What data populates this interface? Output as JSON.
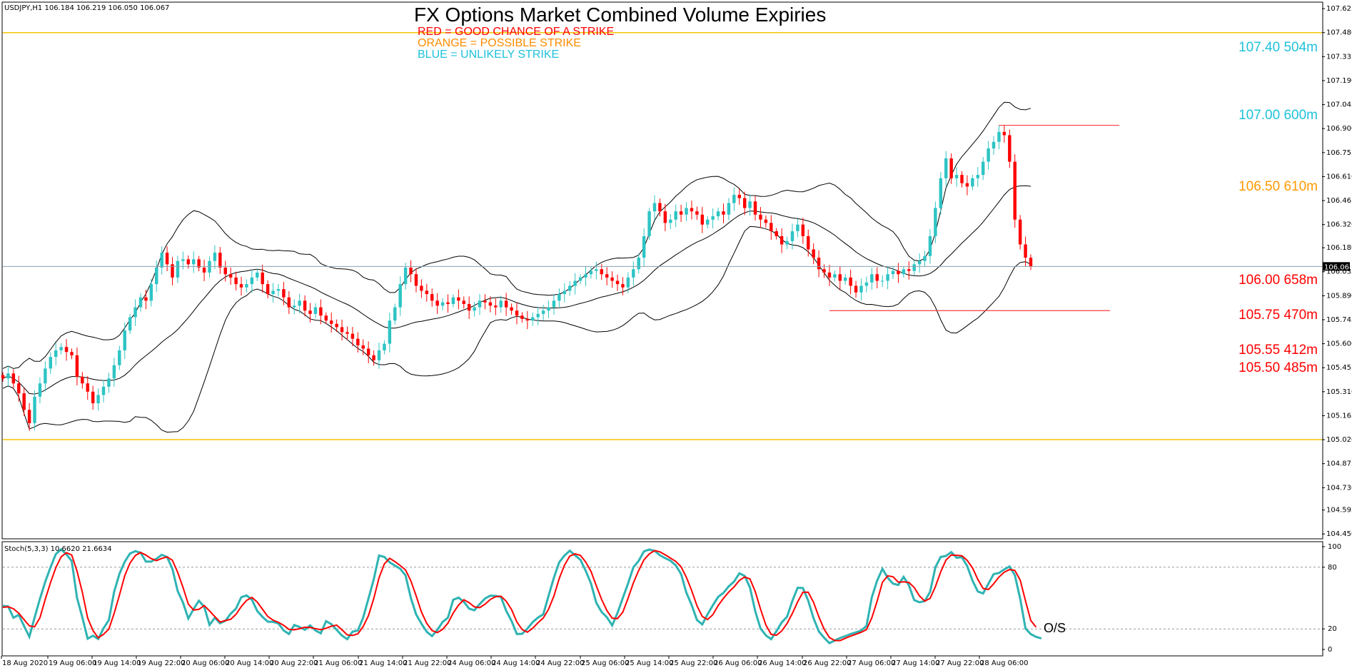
{
  "chart_data": {
    "type": "candlestick",
    "symbol_info": "USDJPY,H1  106.184 106.219 106.050 106.067",
    "title": "FX Options Market Combined Volume Expiries",
    "legend": [
      {
        "text": "RED = GOOD CHANCE OF A STRIKE",
        "color": "#ff0000"
      },
      {
        "text": "ORANGE = POSSIBLE STRIKE",
        "color": "#ff8c00"
      },
      {
        "text": "BLUE = UNLIKELY STRIKE",
        "color": "#1fc1d9"
      }
    ],
    "ylim": [
      104.425,
      107.66
    ],
    "y_ticks": [
      "107.625",
      "107.480",
      "107.335",
      "107.190",
      "107.045",
      "106.900",
      "106.755",
      "106.610",
      "106.465",
      "106.320",
      "106.180",
      "106.035",
      "105.890",
      "105.745",
      "105.600",
      "105.455",
      "105.310",
      "105.165",
      "105.020",
      "104.875",
      "104.730",
      "104.595",
      "104.450"
    ],
    "current_price": "106.067",
    "current_price_value": 106.067,
    "x_ticks": [
      "18 Aug 2020",
      "19 Aug 06:00",
      "19 Aug 14:00",
      "19 Aug 22:00",
      "20 Aug 06:00",
      "20 Aug 14:00",
      "20 Aug 22:00",
      "21 Aug 06:00",
      "21 Aug 14:00",
      "21 Aug 22:00",
      "24 Aug 06:00",
      "24 Aug 14:00",
      "24 Aug 22:00",
      "25 Aug 06:00",
      "25 Aug 14:00",
      "25 Aug 22:00",
      "26 Aug 06:00",
      "26 Aug 14:00",
      "26 Aug 22:00",
      "27 Aug 06:00",
      "27 Aug 14:00",
      "27 Aug 22:00",
      "28 Aug 06:00"
    ],
    "strikes": [
      {
        "label": "107.40 504m",
        "price": 107.4,
        "color": "#1fc1d9"
      },
      {
        "label": "107.00 600m",
        "price": 107.0,
        "color": "#1fc1d9"
      },
      {
        "label": "106.50 610m",
        "price": 106.5,
        "color": "#ff9900"
      },
      {
        "label": "106.00 658m",
        "price": 106.0,
        "color": "#ff0000"
      },
      {
        "label": "105.75 470m",
        "price": 105.75,
        "color": "#ff0000"
      },
      {
        "label": "105.55 412m",
        "price": 105.55,
        "color": "#ff0000"
      },
      {
        "label": "105.50 485m",
        "price": 105.5,
        "color": "#ff0000"
      }
    ],
    "range_lines": [
      107.48,
      105.02
    ],
    "resistance_line": {
      "price": 106.92,
      "from_bar": 188,
      "to_bar": 208
    },
    "support_line": {
      "price": 105.8,
      "from_bar": 156,
      "to_bar": 208
    },
    "closes": [
      105.39,
      105.42,
      105.36,
      105.3,
      105.2,
      105.12,
      105.28,
      105.36,
      105.45,
      105.52,
      105.56,
      105.58,
      105.55,
      105.53,
      105.4,
      105.36,
      105.31,
      105.24,
      105.29,
      105.34,
      105.39,
      105.47,
      105.56,
      105.68,
      105.76,
      105.82,
      105.88,
      105.86,
      105.96,
      106.06,
      106.15,
      106.08,
      106.0,
      106.1,
      106.11,
      106.08,
      106.11,
      106.06,
      106.03,
      106.1,
      106.15,
      106.06,
      106.02,
      106.0,
      105.96,
      105.94,
      105.96,
      106.0,
      106.03,
      105.96,
      105.9,
      105.92,
      105.93,
      105.88,
      105.82,
      105.83,
      105.86,
      105.8,
      105.78,
      105.82,
      105.77,
      105.74,
      105.72,
      105.7,
      105.67,
      105.66,
      105.63,
      105.59,
      105.57,
      105.53,
      105.5,
      105.56,
      105.6,
      105.74,
      105.82,
      105.96,
      106.06,
      106.02,
      105.95,
      105.92,
      105.9,
      105.86,
      105.83,
      105.85,
      105.84,
      105.88,
      105.86,
      105.84,
      105.8,
      105.82,
      105.86,
      105.85,
      105.83,
      105.82,
      105.86,
      105.82,
      105.8,
      105.77,
      105.75,
      105.74,
      105.76,
      105.78,
      105.8,
      105.82,
      105.86,
      105.9,
      105.92,
      105.95,
      105.98,
      106.0,
      106.02,
      106.04,
      106.05,
      106.02,
      106.0,
      105.98,
      105.96,
      105.94,
      106.0,
      106.05,
      106.12,
      106.25,
      106.4,
      106.45,
      106.4,
      106.33,
      106.35,
      106.4,
      106.38,
      106.42,
      106.4,
      106.38,
      106.32,
      106.35,
      106.37,
      106.4,
      106.38,
      106.45,
      106.5,
      106.48,
      106.42,
      106.46,
      106.38,
      106.35,
      106.33,
      106.28,
      106.25,
      106.2,
      106.22,
      106.28,
      106.32,
      106.25,
      106.17,
      106.12,
      106.05,
      106.03,
      106.0,
      106.02,
      105.98,
      106.0,
      105.95,
      105.91,
      105.95,
      105.97,
      106.02,
      105.98,
      105.98,
      106.02,
      106.04,
      106.02,
      106.05,
      106.04,
      106.08,
      106.1,
      106.13,
      106.25,
      106.42,
      106.6,
      106.72,
      106.6,
      106.62,
      106.57,
      106.55,
      106.6,
      106.62,
      106.7,
      106.78,
      106.82,
      106.88,
      106.86,
      106.7,
      106.35,
      106.2,
      106.12,
      106.067
    ],
    "stochastic": {
      "name": "Stoch(5,3,3)",
      "info": "Stoch(5,3,3) 10.6620 21.6634",
      "k": [
        42.5,
        41.8,
        30.8,
        33.7,
        22.8,
        12.3,
        31.1,
        49.4,
        65.9,
        80.0,
        92.8,
        97.4,
        92.4,
        86.0,
        50.2,
        31.3,
        10.4,
        13.4,
        10.2,
        20.5,
        28.6,
        56.2,
        73.5,
        85.3,
        93.3,
        95.6,
        94.2,
        85.5,
        85.5,
        88.3,
        92.1,
        89.9,
        78.5,
        56.9,
        45.5,
        30.1,
        39.3,
        47.4,
        41.5,
        23.8,
        30.8,
        25.5,
        27.9,
        34.8,
        39.8,
        50.8,
        52.6,
        48.5,
        37.5,
        31.7,
        27.1,
        26.8,
        25.3,
        18.5,
        15.0,
        23.8,
        21.8,
        19.1,
        23.4,
        18.5,
        15.7,
        27.5,
        24.6,
        19.1,
        13.5,
        10.0,
        17.3,
        18.4,
        30.9,
        49.6,
        68.3,
        91.4,
        90.0,
        84.8,
        81.5,
        78.5,
        72.1,
        50.2,
        34.0,
        25.1,
        17.2,
        13.0,
        19.0,
        26.8,
        31.0,
        48.3,
        50.4,
        46.3,
        39.7,
        38.1,
        44.2,
        49.6,
        52.3,
        52.1,
        51.1,
        37.5,
        27.8,
        15.1,
        15.2,
        20.2,
        26.6,
        31.1,
        34.2,
        52.3,
        69.9,
        84.8,
        91.4,
        96.1,
        91.6,
        87.2,
        76.6,
        64.2,
        45.5,
        36.5,
        31.3,
        23.4,
        35.4,
        50.1,
        64.3,
        79.9,
        86.2,
        95.4,
        97.2,
        95.9,
        91.7,
        88.8,
        86.3,
        81.8,
        73.5,
        55.3,
        43.3,
        28.6,
        24.4,
        34.2,
        42.9,
        51.2,
        55.1,
        61.4,
        66.0,
        74.1,
        71.5,
        60.3,
        37.2,
        20.4,
        13.7,
        10.0,
        17.8,
        26.3,
        31.8,
        47.2,
        60.0,
        59.7,
        47.5,
        30.3,
        17.6,
        11.4,
        6.1,
        8.7,
        11.1,
        12.9,
        15.0,
        16.6,
        18.4,
        22.9,
        50.7,
        66.9,
        78.5,
        69.7,
        64.0,
        62.7,
        70.6,
        62.3,
        48.0,
        45.9,
        47.1,
        56.1,
        80.0,
        90.0,
        91.0,
        94.7,
        89.2,
        89.7,
        81.2,
        66.9,
        56.4,
        54.5,
        63.9,
        73.3,
        74.4,
        77.9,
        80.7,
        72.2,
        49.2,
        20.5,
        14.9,
        12.3,
        10.66
      ],
      "d": [
        41.0,
        41.5,
        39.6,
        35.3,
        29.1,
        22.9,
        22.0,
        30.9,
        48.8,
        65.1,
        79.6,
        90.1,
        94.2,
        91.9,
        76.2,
        55.8,
        30.6,
        18.4,
        11.3,
        14.7,
        19.8,
        35.1,
        52.8,
        71.7,
        84.0,
        91.4,
        94.4,
        91.8,
        88.4,
        86.4,
        88.6,
        90.1,
        86.8,
        75.1,
        60.3,
        44.2,
        38.3,
        39.0,
        42.7,
        37.6,
        32.0,
        26.7,
        28.1,
        29.4,
        34.2,
        41.8,
        47.7,
        50.6,
        46.2,
        39.2,
        32.1,
        28.5,
        26.4,
        23.5,
        19.6,
        19.1,
        20.2,
        21.6,
        21.4,
        20.3,
        19.2,
        20.6,
        22.6,
        23.7,
        19.1,
        14.2,
        13.6,
        15.2,
        22.2,
        32.9,
        49.6,
        69.8,
        83.2,
        88.7,
        85.4,
        81.6,
        77.4,
        66.9,
        52.1,
        36.4,
        25.4,
        18.4,
        16.4,
        19.6,
        25.6,
        35.4,
        43.2,
        48.3,
        45.5,
        41.4,
        40.7,
        44.0,
        48.7,
        51.3,
        51.8,
        46.9,
        38.8,
        26.8,
        19.4,
        16.8,
        20.7,
        26.0,
        30.6,
        39.2,
        52.1,
        69.0,
        82.0,
        90.8,
        93.0,
        91.6,
        85.1,
        76.0,
        62.1,
        48.7,
        37.8,
        30.4,
        30.0,
        36.3,
        49.9,
        64.8,
        76.8,
        87.2,
        92.9,
        96.2,
        95.0,
        92.1,
        88.9,
        85.6,
        80.5,
        70.2,
        57.4,
        42.4,
        32.1,
        29.1,
        33.8,
        42.8,
        49.7,
        55.9,
        60.8,
        67.2,
        70.5,
        68.6,
        56.3,
        39.3,
        23.8,
        14.7,
        13.8,
        18.0,
        25.3,
        35.1,
        46.3,
        55.6,
        55.7,
        45.8,
        31.8,
        19.8,
        11.7,
        8.7,
        8.6,
        10.9,
        13.0,
        14.8,
        16.7,
        19.3,
        30.7,
        46.8,
        65.4,
        71.7,
        70.7,
        65.5,
        65.8,
        65.2,
        60.3,
        52.1,
        47.0,
        49.7,
        61.1,
        75.4,
        87.0,
        91.9,
        91.6,
        91.2,
        86.7,
        79.3,
        68.2,
        59.3,
        58.3,
        63.9,
        70.5,
        75.2,
        77.7,
        76.9,
        67.4,
        47.3,
        28.2,
        21.66
      ],
      "levels": [
        80,
        20
      ],
      "y_ticks": [
        "100",
        "80",
        "20",
        "0"
      ],
      "os_label": "O/S"
    }
  }
}
